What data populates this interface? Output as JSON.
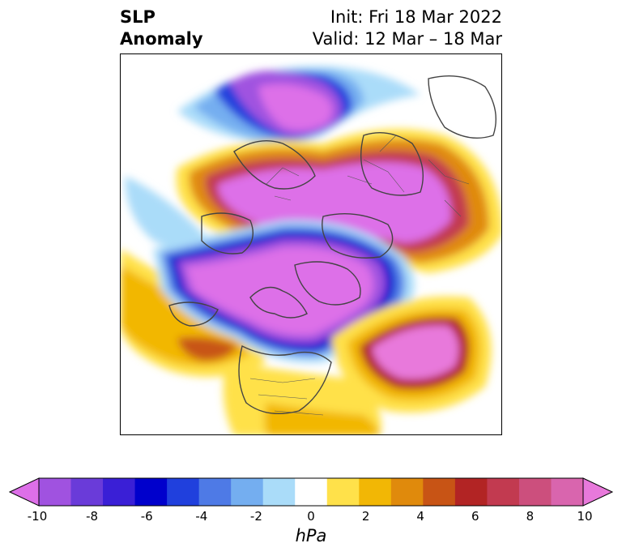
{
  "title": {
    "left_line1": "SLP",
    "left_line2": "Anomaly",
    "right_line1": "Init: Fri 18 Mar 2022",
    "right_line2": "Valid: 12 Mar – 18 Mar"
  },
  "colorbar": {
    "unit": "hPa",
    "min": -10,
    "max": 10,
    "ticks": [
      "-10",
      "-8",
      "-6",
      "-4",
      "-2",
      "0",
      "2",
      "4",
      "6",
      "8",
      "10"
    ],
    "colors": [
      "#dd6fe8",
      "#a052e0",
      "#6a3bd9",
      "#3a1fd6",
      "#0000cc",
      "#2040dd",
      "#4e7ae6",
      "#74aef0",
      "#aadcf9",
      "#ffffff",
      "#ffe14a",
      "#f2b705",
      "#e08a0c",
      "#c85415",
      "#b22424",
      "#c23a50",
      "#cc4f7d",
      "#d965ae",
      "#e879db"
    ]
  }
}
